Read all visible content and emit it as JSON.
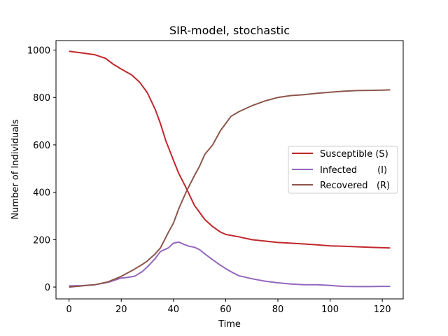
{
  "chart_data": {
    "type": "line",
    "title": "SIR-model, stochastic",
    "xlabel": "Time",
    "ylabel": "Number of Individuals",
    "xlim": [
      -5,
      128
    ],
    "ylim": [
      -50,
      1040
    ],
    "xticks": [
      0,
      20,
      40,
      60,
      80,
      100,
      120
    ],
    "yticks": [
      0,
      200,
      400,
      600,
      800,
      1000
    ],
    "grid": false,
    "legend_position": "center-right",
    "series": [
      {
        "name": "Susceptible (S)",
        "color": "#c0272d",
        "x": [
          0,
          5,
          10,
          14,
          17,
          20,
          24,
          27,
          30,
          33,
          35,
          37,
          40,
          42,
          45,
          48,
          50,
          52,
          55,
          58,
          60,
          65,
          70,
          75,
          80,
          85,
          90,
          95,
          100,
          105,
          110,
          115,
          120,
          123
        ],
        "y": [
          995,
          988,
          980,
          965,
          940,
          920,
          895,
          865,
          820,
          750,
          690,
          620,
          535,
          480,
          415,
          345,
          315,
          285,
          255,
          232,
          222,
          212,
          200,
          194,
          188,
          185,
          182,
          178,
          174,
          172,
          170,
          168,
          166,
          165
        ]
      },
      {
        "name": "Infected       (I)",
        "color": "#9467bd",
        "x": [
          0,
          5,
          10,
          15,
          20,
          22,
          25,
          28,
          30,
          33,
          35,
          38,
          40,
          42,
          44,
          46,
          48,
          50,
          52,
          55,
          58,
          60,
          62,
          65,
          70,
          75,
          80,
          85,
          90,
          95,
          100,
          105,
          110,
          115,
          120,
          123
        ],
        "y": [
          5,
          6,
          10,
          20,
          38,
          40,
          45,
          65,
          85,
          120,
          150,
          165,
          185,
          190,
          180,
          172,
          168,
          158,
          140,
          115,
          92,
          78,
          65,
          48,
          35,
          25,
          18,
          13,
          10,
          10,
          7,
          3,
          2,
          2,
          3,
          3
        ]
      },
      {
        "name": "Recovered   (R)",
        "color": "#8c564b",
        "x": [
          0,
          5,
          10,
          15,
          20,
          25,
          28,
          30,
          33,
          35,
          38,
          40,
          42,
          45,
          48,
          50,
          52,
          55,
          58,
          60,
          62,
          65,
          70,
          75,
          80,
          85,
          90,
          95,
          100,
          105,
          110,
          115,
          120,
          123
        ],
        "y": [
          0,
          5,
          10,
          22,
          45,
          75,
          95,
          110,
          140,
          165,
          230,
          270,
          330,
          405,
          470,
          510,
          560,
          600,
          660,
          690,
          720,
          740,
          765,
          785,
          800,
          808,
          812,
          818,
          822,
          826,
          829,
          830,
          831,
          832
        ]
      }
    ]
  }
}
